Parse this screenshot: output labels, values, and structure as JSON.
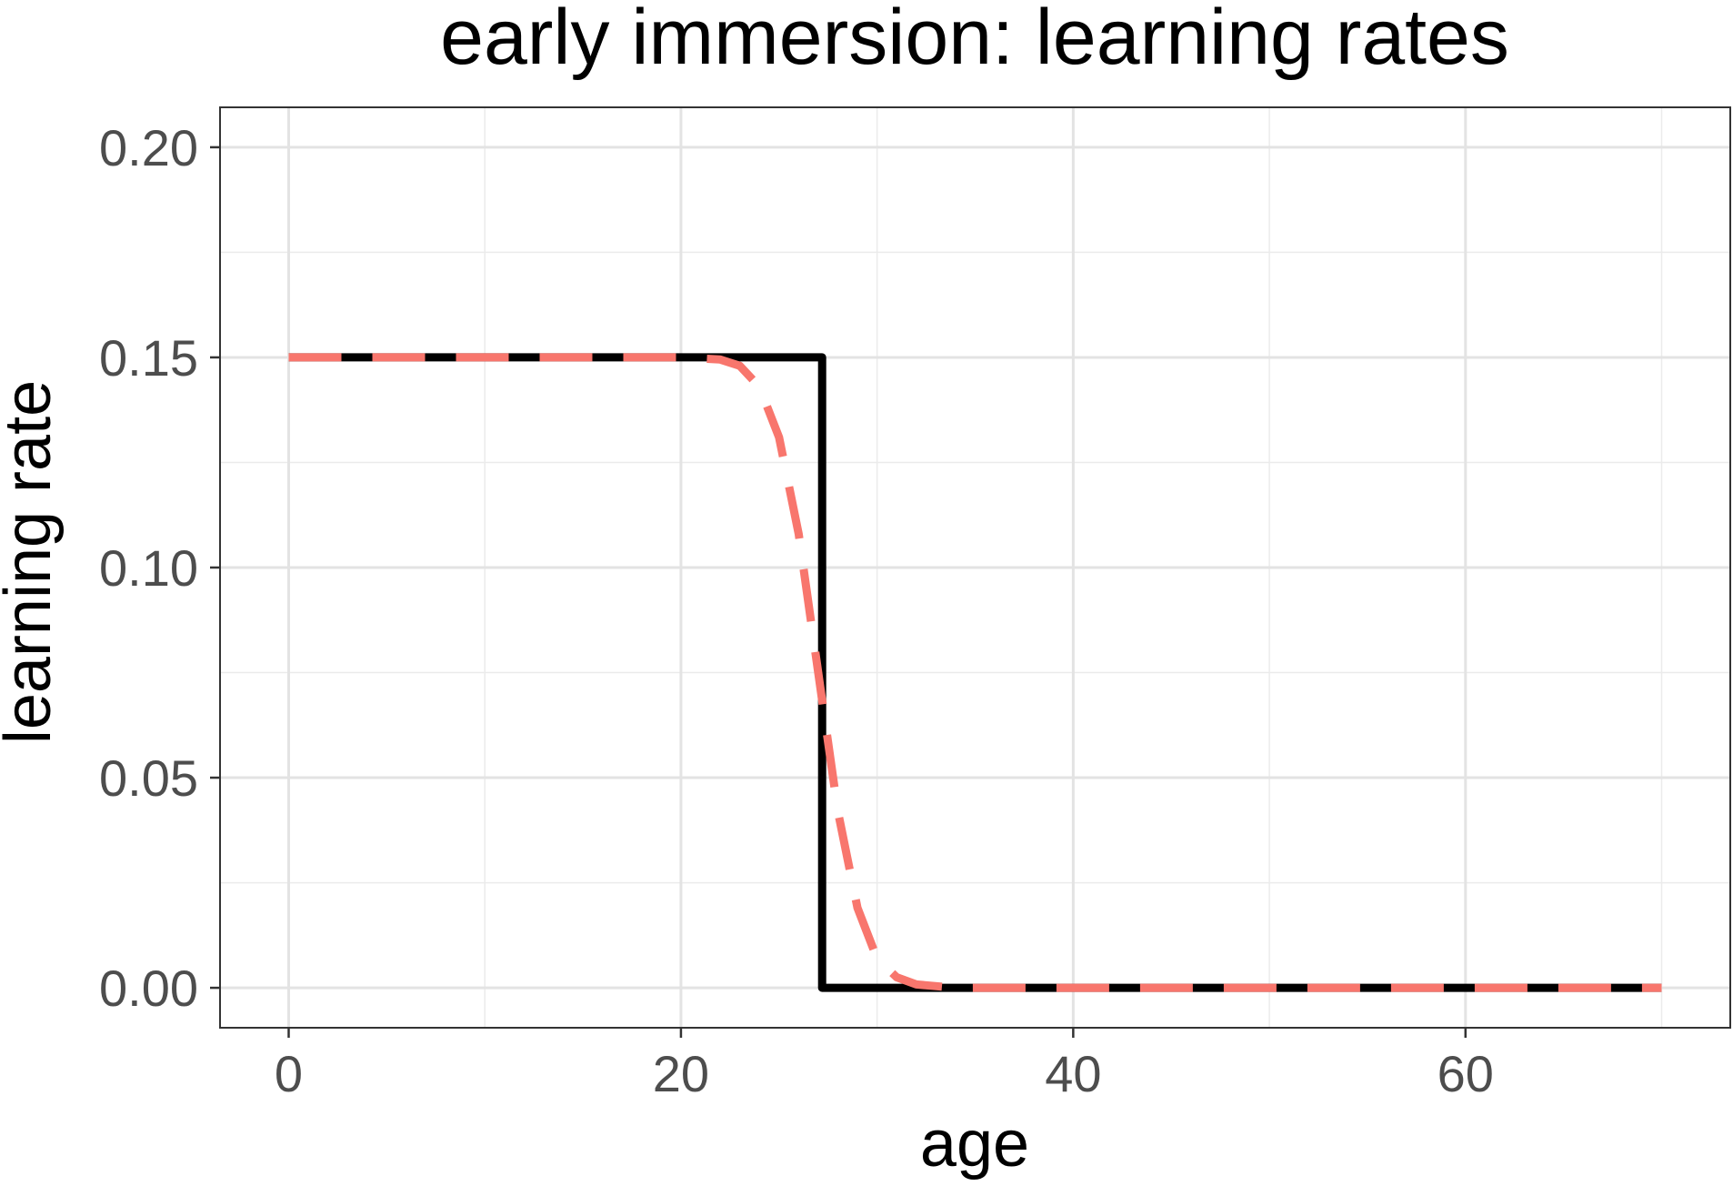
{
  "chart_data": {
    "type": "line",
    "title": "early immersion: learning rates",
    "xlabel": "age",
    "ylabel": "learning rate",
    "xlim": [
      -3.5,
      73.5
    ],
    "ylim": [
      -0.0095,
      0.2095
    ],
    "x_ticks": [
      0,
      20,
      40,
      60
    ],
    "x_tick_labels": [
      "0",
      "20",
      "40",
      "60"
    ],
    "y_ticks": [
      0,
      0.05,
      0.1,
      0.15,
      0.2
    ],
    "y_tick_labels": [
      "0.00",
      "0.05",
      "0.10",
      "0.15",
      "0.20"
    ],
    "grid": true,
    "legend": "none",
    "series": [
      {
        "style": "solid",
        "color": "#000000",
        "points": [
          [
            0,
            0.15
          ],
          [
            27.2,
            0.15
          ],
          [
            27.2,
            0.0
          ],
          [
            70,
            0.0
          ]
        ]
      },
      {
        "style": "dashed",
        "color": "#F8766D",
        "points": [
          [
            0,
            0.15
          ],
          [
            20,
            0.15
          ],
          [
            22,
            0.1495
          ],
          [
            23,
            0.148
          ],
          [
            24,
            0.143
          ],
          [
            25,
            0.131
          ],
          [
            26,
            0.108
          ],
          [
            27,
            0.075
          ],
          [
            28,
            0.042
          ],
          [
            29,
            0.019
          ],
          [
            30,
            0.007
          ],
          [
            31,
            0.0025
          ],
          [
            32,
            0.0008
          ],
          [
            34,
            0.0
          ],
          [
            70,
            0.0
          ]
        ]
      }
    ]
  }
}
